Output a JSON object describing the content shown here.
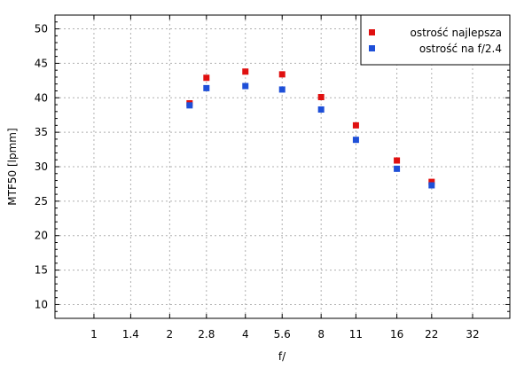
{
  "chart_data": {
    "type": "scatter",
    "title": "",
    "xlabel": "f/",
    "ylabel": "MTF50 [lpmm]",
    "x_scale": "log2",
    "x_ticks": [
      "1",
      "1.4",
      "2",
      "2.8",
      "4",
      "5.6",
      "8",
      "11",
      "16",
      "22",
      "32"
    ],
    "xlim": [
      0.7,
      45
    ],
    "ylim": [
      8,
      52
    ],
    "y_ticks": [
      10,
      15,
      20,
      25,
      30,
      35,
      40,
      45,
      50
    ],
    "grid": true,
    "legend_position": "top-right",
    "x": [
      2.4,
      2.8,
      4,
      5.6,
      8,
      11,
      16,
      22
    ],
    "series": [
      {
        "name": "ostrość najlepsza",
        "color": "#e01010",
        "values": [
          39.2,
          42.9,
          43.8,
          43.4,
          40.1,
          36.0,
          30.9,
          27.8
        ]
      },
      {
        "name": "ostrość na f/2.4",
        "color": "#1e4fd8",
        "values": [
          38.9,
          41.4,
          41.7,
          41.2,
          38.3,
          33.9,
          29.7,
          27.3
        ]
      }
    ]
  }
}
